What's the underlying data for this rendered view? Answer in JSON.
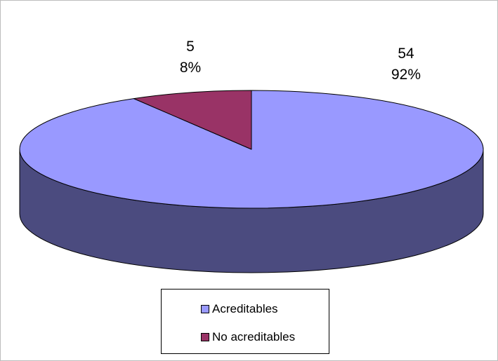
{
  "chart_data": {
    "type": "pie",
    "style": "3d",
    "legend_position": "bottom",
    "slices": [
      {
        "name": "Acreditables",
        "value": 54,
        "percent_label": "92%",
        "color": "#9999ff",
        "side_color": "#4b4b7f"
      },
      {
        "name": "No acreditables",
        "value": 5,
        "percent_label": "8%",
        "color": "#993366",
        "side_color": "#4c1a33"
      }
    ]
  }
}
